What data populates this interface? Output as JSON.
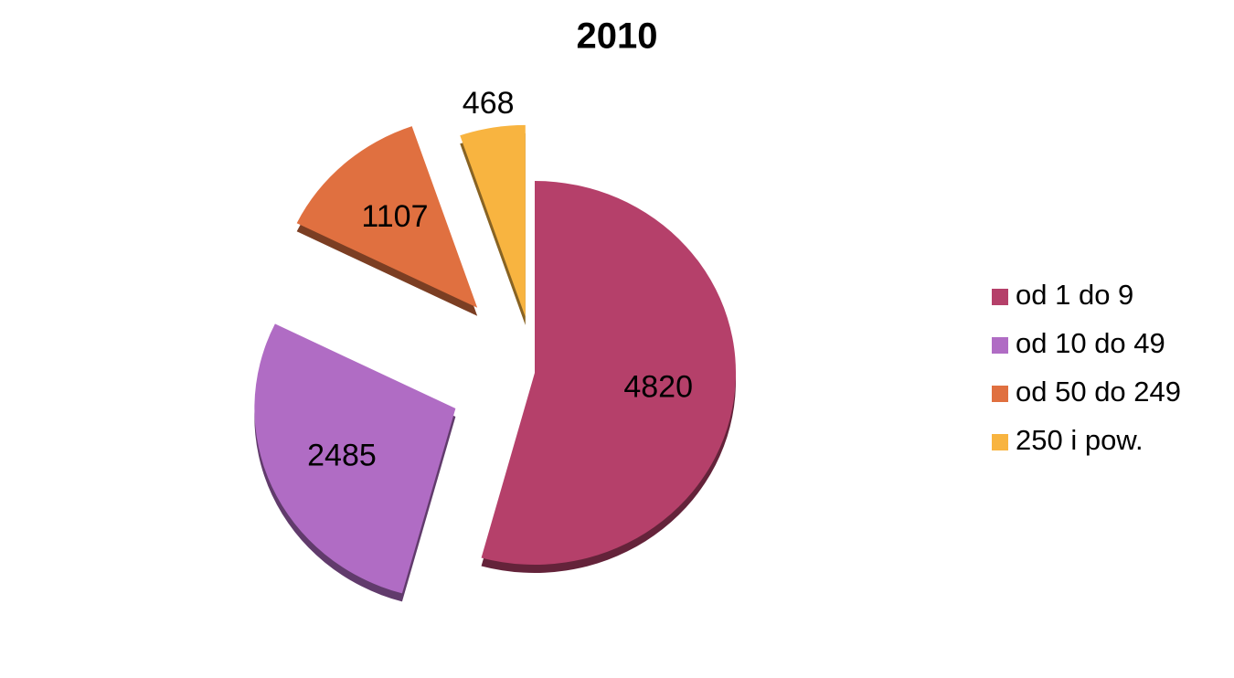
{
  "chart_data": {
    "type": "pie",
    "title": "2010",
    "categories": [
      "od 1 do 9",
      "od 10 do 49",
      "od 50 do 249",
      "250 i pow."
    ],
    "values": [
      4820,
      2485,
      1107,
      468
    ],
    "colors": [
      "#b5406a",
      "#b06cc4",
      "#e07040",
      "#f8b440"
    ],
    "legend": "right"
  }
}
